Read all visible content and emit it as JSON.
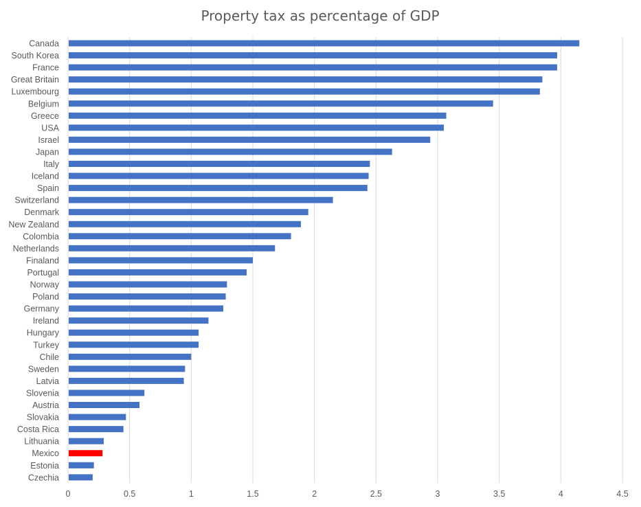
{
  "chart_data": {
    "type": "bar",
    "orientation": "horizontal",
    "title": "Property tax as percentage of GDP",
    "xlabel": "",
    "ylabel": "",
    "xlim": [
      0,
      4.5
    ],
    "x_ticks": [
      "0",
      "0.5",
      "1",
      "1.5",
      "2",
      "2.5",
      "3",
      "3.5",
      "4",
      "4.5"
    ],
    "grid": true,
    "legend": "none",
    "categories": [
      "Canada",
      "South Korea",
      "France",
      "Great Britain",
      "Luxembourg",
      "Belgium",
      "Greece",
      "USA",
      "Israel",
      "Japan",
      "Italy",
      "Iceland",
      "Spain",
      "Switzerland",
      "Denmark",
      "New Zealand",
      "Colombia",
      "Netherlands",
      "Finaland",
      "Portugal",
      "Norway",
      "Poland",
      "Germany",
      "Ireland",
      "Hungary",
      "Turkey",
      "Chile",
      "Sweden",
      "Latvia",
      "Slovenia",
      "Austria",
      "Slovakia",
      "Costa Rica",
      "Lithuania",
      "Mexico",
      "Estonia",
      "Czechia"
    ],
    "values": [
      4.15,
      3.97,
      3.97,
      3.85,
      3.83,
      3.45,
      3.07,
      3.05,
      2.94,
      2.63,
      2.45,
      2.44,
      2.43,
      2.15,
      1.95,
      1.89,
      1.81,
      1.68,
      1.5,
      1.45,
      1.29,
      1.28,
      1.26,
      1.14,
      1.06,
      1.06,
      1.0,
      0.95,
      0.94,
      0.62,
      0.58,
      0.47,
      0.45,
      0.29,
      0.28,
      0.21,
      0.2
    ],
    "bar_color": "#4472c4",
    "highlight": {
      "category": "Mexico",
      "color": "#ff0000"
    },
    "gridline_color": "#d9d9d9",
    "text_color": "#595959"
  }
}
